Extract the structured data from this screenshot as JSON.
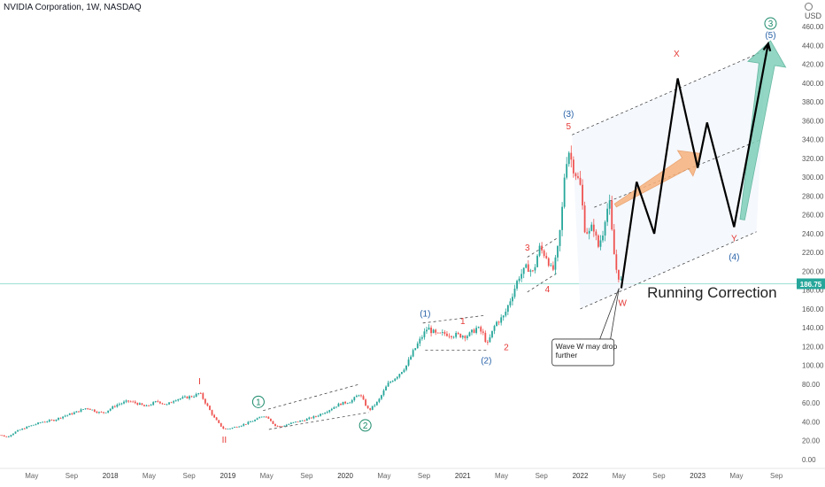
{
  "header": {
    "title": "NVIDIA Corporation, 1W, NASDAQ",
    "currency": "USD"
  },
  "chart_data": {
    "type": "candlestick",
    "title": "NVIDIA Corporation, 1W, NASDAQ",
    "y_axis": {
      "ticks": [
        "0.00",
        "20.00",
        "40.00",
        "60.00",
        "80.00",
        "100.00",
        "120.00",
        "140.00",
        "160.00",
        "180.00",
        "200.00",
        "220.00",
        "240.00",
        "260.00",
        "280.00",
        "300.00",
        "320.00",
        "340.00",
        "360.00",
        "380.00",
        "400.00",
        "420.00",
        "440.00",
        "460.00"
      ],
      "ylim": [
        0,
        470
      ],
      "side": "right"
    },
    "x_axis": {
      "ticks": [
        {
          "label": "May",
          "t": 2017.33
        },
        {
          "label": "Sep",
          "t": 2017.67
        },
        {
          "label": "2018",
          "t": 2018.0
        },
        {
          "label": "May",
          "t": 2018.33
        },
        {
          "label": "Sep",
          "t": 2018.67
        },
        {
          "label": "2019",
          "t": 2019.0
        },
        {
          "label": "May",
          "t": 2019.33
        },
        {
          "label": "Sep",
          "t": 2019.67
        },
        {
          "label": "2020",
          "t": 2020.0
        },
        {
          "label": "May",
          "t": 2020.33
        },
        {
          "label": "Sep",
          "t": 2020.67
        },
        {
          "label": "2021",
          "t": 2021.0
        },
        {
          "label": "May",
          "t": 2021.33
        },
        {
          "label": "Sep",
          "t": 2021.67
        },
        {
          "label": "2022",
          "t": 2022.0
        },
        {
          "label": "May",
          "t": 2022.33
        },
        {
          "label": "Sep",
          "t": 2022.67
        },
        {
          "label": "2023",
          "t": 2023.0
        },
        {
          "label": "May",
          "t": 2023.33
        },
        {
          "label": "Sep",
          "t": 2023.67
        }
      ],
      "xlim": [
        2017.0,
        2024.0
      ]
    },
    "colors": {
      "up": "#26a69a",
      "down": "#ef5350",
      "wave_red": "#e53935",
      "wave_blue": "#2962a8",
      "wave_green": "#1b8a6b",
      "projection": "#000000",
      "orange_arrow": "#f7b27c",
      "green_arrow": "#7fcfb9",
      "price_line": "#7fd6c4",
      "price_label_bg": "#26a69a"
    },
    "price_series": [
      [
        2017.0,
        28
      ],
      [
        2017.12,
        24
      ],
      [
        2017.2,
        30
      ],
      [
        2017.3,
        35
      ],
      [
        2017.42,
        40
      ],
      [
        2017.52,
        42
      ],
      [
        2017.6,
        46
      ],
      [
        2017.7,
        50
      ],
      [
        2017.8,
        55
      ],
      [
        2017.9,
        50
      ],
      [
        2017.95,
        50
      ],
      [
        2018.05,
        58
      ],
      [
        2018.15,
        62
      ],
      [
        2018.22,
        60
      ],
      [
        2018.3,
        56
      ],
      [
        2018.4,
        62
      ],
      [
        2018.48,
        58
      ],
      [
        2018.55,
        64
      ],
      [
        2018.65,
        66
      ],
      [
        2018.72,
        68
      ],
      [
        2018.76,
        71
      ],
      [
        2018.82,
        58
      ],
      [
        2018.88,
        45
      ],
      [
        2018.93,
        37
      ],
      [
        2018.97,
        32
      ],
      [
        2019.05,
        34
      ],
      [
        2019.15,
        38
      ],
      [
        2019.25,
        43
      ],
      [
        2019.3,
        47
      ],
      [
        2019.35,
        44
      ],
      [
        2019.4,
        36
      ],
      [
        2019.45,
        35
      ],
      [
        2019.55,
        39
      ],
      [
        2019.65,
        42
      ],
      [
        2019.75,
        46
      ],
      [
        2019.85,
        52
      ],
      [
        2019.95,
        59
      ],
      [
        2020.05,
        62
      ],
      [
        2020.12,
        70
      ],
      [
        2020.2,
        52
      ],
      [
        2020.28,
        62
      ],
      [
        2020.36,
        80
      ],
      [
        2020.45,
        90
      ],
      [
        2020.52,
        100
      ],
      [
        2020.58,
        115
      ],
      [
        2020.65,
        130
      ],
      [
        2020.7,
        140
      ],
      [
        2020.78,
        132
      ],
      [
        2020.85,
        134
      ],
      [
        2020.95,
        132
      ],
      [
        2021.05,
        132
      ],
      [
        2021.12,
        140
      ],
      [
        2021.17,
        134
      ],
      [
        2021.21,
        122
      ],
      [
        2021.28,
        145
      ],
      [
        2021.35,
        152
      ],
      [
        2021.42,
        175
      ],
      [
        2021.48,
        195
      ],
      [
        2021.52,
        200
      ],
      [
        2021.55,
        205
      ],
      [
        2021.6,
        198
      ],
      [
        2021.65,
        225
      ],
      [
        2021.72,
        215
      ],
      [
        2021.76,
        198
      ],
      [
        2021.8,
        215
      ],
      [
        2021.84,
        255
      ],
      [
        2021.87,
        310
      ],
      [
        2021.9,
        330
      ],
      [
        2021.93,
        315
      ],
      [
        2021.96,
        305
      ],
      [
        2022.0,
        290
      ],
      [
        2022.04,
        245
      ],
      [
        2022.08,
        240
      ],
      [
        2022.11,
        250
      ],
      [
        2022.15,
        225
      ],
      [
        2022.19,
        240
      ],
      [
        2022.22,
        265
      ],
      [
        2022.25,
        270
      ],
      [
        2022.28,
        225
      ],
      [
        2022.31,
        200
      ],
      [
        2022.35,
        188
      ]
    ],
    "current_price": {
      "value": 186.75,
      "label": "186.75"
    },
    "projection_path": [
      [
        2022.35,
        182
      ],
      [
        2022.48,
        295
      ],
      [
        2022.63,
        240
      ],
      [
        2022.83,
        405
      ],
      [
        2023.0,
        310
      ],
      [
        2023.08,
        358
      ],
      [
        2023.31,
        247
      ],
      [
        2023.6,
        442
      ]
    ],
    "channels": [
      {
        "name": "main",
        "lines": [
          [
            [
              2021.93,
              345
            ],
            [
              2023.58,
              435
            ]
          ],
          [
            [
              2022.12,
              268
            ],
            [
              2023.54,
              340
            ]
          ],
          [
            [
              2022.0,
              160
            ],
            [
              2023.5,
              242
            ]
          ]
        ]
      },
      {
        "name": "wave-2019",
        "lines": [
          [
            [
              2019.3,
              52
            ],
            [
              2020.12,
              80
            ]
          ],
          [
            [
              2019.35,
              32
            ],
            [
              2020.2,
              50
            ]
          ]
        ]
      },
      {
        "name": "wave-2020",
        "lines": [
          [
            [
              2020.66,
              145
            ],
            [
              2021.18,
              153
            ]
          ],
          [
            [
              2020.68,
              116
            ],
            [
              2021.2,
              116
            ]
          ]
        ]
      },
      {
        "name": "wave-2021",
        "lines": [
          [
            [
              2021.55,
              215
            ],
            [
              2021.8,
              235
            ]
          ],
          [
            [
              2021.55,
              178
            ],
            [
              2021.8,
              198
            ]
          ]
        ]
      }
    ],
    "wave_labels": [
      {
        "text": "I",
        "t": 2018.76,
        "v": 80,
        "color": "red"
      },
      {
        "text": "II",
        "t": 2018.97,
        "v": 18,
        "color": "red"
      },
      {
        "text": "1",
        "t": 2019.26,
        "v": 58,
        "color": "green",
        "circled": true
      },
      {
        "text": "2",
        "t": 2020.17,
        "v": 33,
        "color": "green",
        "circled": true
      },
      {
        "text": "(1)",
        "t": 2020.68,
        "v": 152,
        "color": "blue"
      },
      {
        "text": "(2)",
        "t": 2021.2,
        "v": 102,
        "color": "blue"
      },
      {
        "text": "1",
        "t": 2021.0,
        "v": 144,
        "color": "red"
      },
      {
        "text": "2",
        "t": 2021.37,
        "v": 116,
        "color": "red"
      },
      {
        "text": "3",
        "t": 2021.55,
        "v": 222,
        "color": "red"
      },
      {
        "text": "4",
        "t": 2021.72,
        "v": 178,
        "color": "red"
      },
      {
        "text": "(3)",
        "t": 2021.9,
        "v": 364,
        "color": "blue"
      },
      {
        "text": "5",
        "t": 2021.9,
        "v": 351,
        "color": "red"
      },
      {
        "text": "W",
        "t": 2022.36,
        "v": 163,
        "color": "red"
      },
      {
        "text": "X",
        "t": 2022.82,
        "v": 428,
        "color": "red"
      },
      {
        "text": "Y",
        "t": 2023.31,
        "v": 232,
        "color": "red"
      },
      {
        "text": "(4)",
        "t": 2023.31,
        "v": 212,
        "color": "blue"
      },
      {
        "text": "(5)",
        "t": 2023.62,
        "v": 448,
        "color": "blue"
      },
      {
        "text": "3",
        "t": 2023.62,
        "v": 460,
        "color": "green",
        "circled": true
      }
    ],
    "annotations": [
      {
        "text": "Running Correction",
        "t": 2022.57,
        "v": 172
      },
      {
        "text": "Wave W may drop further",
        "lines": [
          "Wave W may drop",
          "further"
        ],
        "t": 2021.76,
        "v": 128,
        "pointer_to": [
          2022.33,
          182
        ]
      }
    ],
    "arrows": [
      {
        "name": "orange",
        "from": [
          2022.3,
          270
        ],
        "to": [
          2023.03,
          325
        ]
      },
      {
        "name": "green",
        "from": [
          2023.38,
          255
        ],
        "to": [
          2023.62,
          445
        ]
      }
    ],
    "grid": false
  }
}
